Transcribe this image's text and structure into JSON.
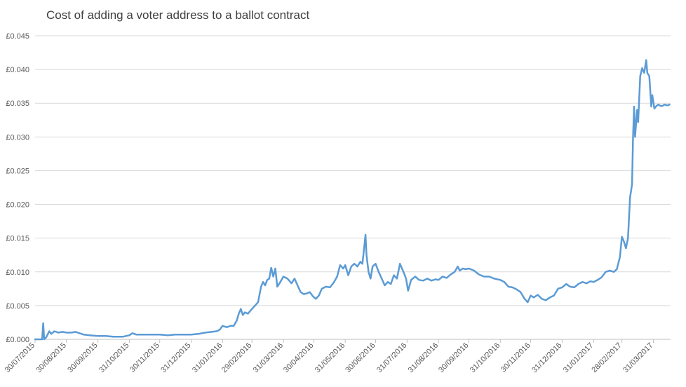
{
  "chart_data": {
    "type": "line",
    "title": "Cost of adding a voter address to a ballot contract",
    "xlabel": "",
    "ylabel": "",
    "ylim": [
      0,
      0.045
    ],
    "xlim": [
      "30/07/2015",
      "17/04/2017"
    ],
    "y_tick_labels": [
      "£0.000",
      "£0.005",
      "£0.010",
      "£0.015",
      "£0.020",
      "£0.025",
      "£0.030",
      "£0.035",
      "£0.040",
      "£0.045"
    ],
    "y_tick_values": [
      0,
      0.005,
      0.01,
      0.015,
      0.02,
      0.025,
      0.03,
      0.035,
      0.04,
      0.045
    ],
    "x_tick_labels": [
      "30/07/2015",
      "30/08/2015",
      "30/09/2015",
      "31/10/2015",
      "30/11/2015",
      "31/12/2015",
      "31/01/2016",
      "29/02/2016",
      "31/03/2016",
      "30/04/2016",
      "31/05/2016",
      "30/06/2016",
      "31/07/2016",
      "31/08/2016",
      "30/09/2016",
      "31/10/2016",
      "30/11/2016",
      "31/12/2016",
      "31/01/2017",
      "28/02/2017",
      "31/03/2017"
    ],
    "grid": true,
    "legend": "none",
    "series": [
      {
        "color": "#5b9bd5",
        "points": [
          [
            "30/07/2015",
            0.0
          ],
          [
            "06/08/2015",
            0.0
          ],
          [
            "07/08/2015",
            0.0024
          ],
          [
            "08/08/2015",
            0.0
          ],
          [
            "10/08/2015",
            0.0003
          ],
          [
            "13/08/2015",
            0.0012
          ],
          [
            "15/08/2015",
            0.0008
          ],
          [
            "18/08/2015",
            0.0012
          ],
          [
            "22/08/2015",
            0.001
          ],
          [
            "26/08/2015",
            0.0011
          ],
          [
            "30/08/2015",
            0.001
          ],
          [
            "04/09/2015",
            0.001
          ],
          [
            "08/09/2015",
            0.0011
          ],
          [
            "12/09/2015",
            0.0009
          ],
          [
            "16/09/2015",
            0.0007
          ],
          [
            "22/09/2015",
            0.0006
          ],
          [
            "30/09/2015",
            0.0005
          ],
          [
            "08/10/2015",
            0.0005
          ],
          [
            "15/10/2015",
            0.0004
          ],
          [
            "20/10/2015",
            0.0004
          ],
          [
            "25/10/2015",
            0.0004
          ],
          [
            "28/10/2015",
            0.0005
          ],
          [
            "31/10/2015",
            0.0006
          ],
          [
            "03/11/2015",
            0.0009
          ],
          [
            "07/11/2015",
            0.0007
          ],
          [
            "12/11/2015",
            0.0007
          ],
          [
            "18/11/2015",
            0.0007
          ],
          [
            "25/11/2015",
            0.0007
          ],
          [
            "30/11/2015",
            0.0007
          ],
          [
            "08/12/2015",
            0.0006
          ],
          [
            "15/12/2015",
            0.0007
          ],
          [
            "22/12/2015",
            0.0007
          ],
          [
            "31/12/2015",
            0.0007
          ],
          [
            "07/01/2016",
            0.0008
          ],
          [
            "14/01/2016",
            0.001
          ],
          [
            "20/01/2016",
            0.0011
          ],
          [
            "25/01/2016",
            0.0012
          ],
          [
            "28/01/2016",
            0.0014
          ],
          [
            "31/01/2016",
            0.002
          ],
          [
            "04/02/2016",
            0.0018
          ],
          [
            "08/02/2016",
            0.002
          ],
          [
            "11/02/2016",
            0.002
          ],
          [
            "14/02/2016",
            0.0028
          ],
          [
            "16/02/2016",
            0.0038
          ],
          [
            "18/02/2016",
            0.0045
          ],
          [
            "20/02/2016",
            0.0036
          ],
          [
            "22/02/2016",
            0.004
          ],
          [
            "25/02/2016",
            0.0038
          ],
          [
            "29/02/2016",
            0.0045
          ],
          [
            "03/03/2016",
            0.005
          ],
          [
            "06/03/2016",
            0.0055
          ],
          [
            "09/03/2016",
            0.0078
          ],
          [
            "11/03/2016",
            0.0085
          ],
          [
            "13/03/2016",
            0.008
          ],
          [
            "15/03/2016",
            0.0088
          ],
          [
            "17/03/2016",
            0.009
          ],
          [
            "19/03/2016",
            0.0106
          ],
          [
            "21/03/2016",
            0.0093
          ],
          [
            "23/03/2016",
            0.0105
          ],
          [
            "25/03/2016",
            0.0078
          ],
          [
            "28/03/2016",
            0.0085
          ],
          [
            "31/03/2016",
            0.0093
          ],
          [
            "04/04/2016",
            0.009
          ],
          [
            "08/04/2016",
            0.0083
          ],
          [
            "11/04/2016",
            0.009
          ],
          [
            "14/04/2016",
            0.008
          ],
          [
            "17/04/2016",
            0.007
          ],
          [
            "20/04/2016",
            0.0067
          ],
          [
            "23/04/2016",
            0.0068
          ],
          [
            "26/04/2016",
            0.007
          ],
          [
            "29/04/2016",
            0.0064
          ],
          [
            "02/05/2016",
            0.006
          ],
          [
            "05/05/2016",
            0.0065
          ],
          [
            "08/05/2016",
            0.0075
          ],
          [
            "12/05/2016",
            0.0078
          ],
          [
            "16/05/2016",
            0.0077
          ],
          [
            "20/05/2016",
            0.0085
          ],
          [
            "23/05/2016",
            0.0093
          ],
          [
            "26/05/2016",
            0.011
          ],
          [
            "29/05/2016",
            0.0105
          ],
          [
            "31/05/2016",
            0.011
          ],
          [
            "03/06/2016",
            0.0095
          ],
          [
            "06/06/2016",
            0.0108
          ],
          [
            "09/06/2016",
            0.0112
          ],
          [
            "12/06/2016",
            0.0108
          ],
          [
            "15/06/2016",
            0.0115
          ],
          [
            "17/06/2016",
            0.0112
          ],
          [
            "19/06/2016",
            0.014
          ],
          [
            "20/06/2016",
            0.0155
          ],
          [
            "21/06/2016",
            0.0125
          ],
          [
            "23/06/2016",
            0.01
          ],
          [
            "25/06/2016",
            0.009
          ],
          [
            "27/06/2016",
            0.0108
          ],
          [
            "30/06/2016",
            0.0112
          ],
          [
            "03/07/2016",
            0.01
          ],
          [
            "06/07/2016",
            0.009
          ],
          [
            "09/07/2016",
            0.008
          ],
          [
            "12/07/2016",
            0.0085
          ],
          [
            "15/07/2016",
            0.0082
          ],
          [
            "18/07/2016",
            0.0095
          ],
          [
            "21/07/2016",
            0.009
          ],
          [
            "24/07/2016",
            0.0112
          ],
          [
            "26/07/2016",
            0.0105
          ],
          [
            "28/07/2016",
            0.0098
          ],
          [
            "30/07/2016",
            0.009
          ],
          [
            "01/08/2016",
            0.0072
          ],
          [
            "04/08/2016",
            0.0088
          ],
          [
            "08/08/2016",
            0.0093
          ],
          [
            "12/08/2016",
            0.0088
          ],
          [
            "16/08/2016",
            0.0087
          ],
          [
            "20/08/2016",
            0.009
          ],
          [
            "24/08/2016",
            0.0087
          ],
          [
            "28/08/2016",
            0.0089
          ],
          [
            "31/08/2016",
            0.0088
          ],
          [
            "04/09/2016",
            0.0093
          ],
          [
            "08/09/2016",
            0.0091
          ],
          [
            "12/09/2016",
            0.0096
          ],
          [
            "16/09/2016",
            0.01
          ],
          [
            "19/09/2016",
            0.0108
          ],
          [
            "21/09/2016",
            0.0102
          ],
          [
            "24/09/2016",
            0.0105
          ],
          [
            "27/09/2016",
            0.0104
          ],
          [
            "30/09/2016",
            0.0105
          ],
          [
            "05/10/2016",
            0.0102
          ],
          [
            "10/10/2016",
            0.0096
          ],
          [
            "15/10/2016",
            0.0093
          ],
          [
            "20/10/2016",
            0.0093
          ],
          [
            "25/10/2016",
            0.009
          ],
          [
            "31/10/2016",
            0.0088
          ],
          [
            "04/11/2016",
            0.0085
          ],
          [
            "08/11/2016",
            0.0078
          ],
          [
            "12/11/2016",
            0.0077
          ],
          [
            "16/11/2016",
            0.0074
          ],
          [
            "20/11/2016",
            0.007
          ],
          [
            "24/11/2016",
            0.006
          ],
          [
            "27/11/2016",
            0.0055
          ],
          [
            "30/11/2016",
            0.0065
          ],
          [
            "03/12/2016",
            0.0062
          ],
          [
            "07/12/2016",
            0.0066
          ],
          [
            "11/12/2016",
            0.006
          ],
          [
            "15/12/2016",
            0.0058
          ],
          [
            "19/12/2016",
            0.0062
          ],
          [
            "23/12/2016",
            0.0065
          ],
          [
            "27/12/2016",
            0.0075
          ],
          [
            "31/12/2016",
            0.0077
          ],
          [
            "04/01/2017",
            0.0082
          ],
          [
            "08/01/2017",
            0.0078
          ],
          [
            "12/01/2017",
            0.0077
          ],
          [
            "16/01/2017",
            0.0082
          ],
          [
            "20/01/2017",
            0.0085
          ],
          [
            "24/01/2017",
            0.0083
          ],
          [
            "28/01/2017",
            0.0086
          ],
          [
            "31/01/2017",
            0.0085
          ],
          [
            "04/02/2017",
            0.0088
          ],
          [
            "08/02/2017",
            0.0092
          ],
          [
            "12/02/2017",
            0.01
          ],
          [
            "16/02/2017",
            0.0102
          ],
          [
            "20/02/2017",
            0.01
          ],
          [
            "23/02/2017",
            0.0104
          ],
          [
            "26/02/2017",
            0.0122
          ],
          [
            "28/02/2017",
            0.0152
          ],
          [
            "02/03/2017",
            0.0145
          ],
          [
            "04/03/2017",
            0.0135
          ],
          [
            "06/03/2017",
            0.015
          ],
          [
            "08/03/2017",
            0.021
          ],
          [
            "10/03/2017",
            0.023
          ],
          [
            "11/03/2017",
            0.03
          ],
          [
            "12/03/2017",
            0.0345
          ],
          [
            "13/03/2017",
            0.03
          ],
          [
            "15/03/2017",
            0.034
          ],
          [
            "16/03/2017",
            0.0322
          ],
          [
            "18/03/2017",
            0.039
          ],
          [
            "20/03/2017",
            0.0402
          ],
          [
            "22/03/2017",
            0.0395
          ],
          [
            "24/03/2017",
            0.0414
          ],
          [
            "25/03/2017",
            0.0395
          ],
          [
            "27/03/2017",
            0.039
          ],
          [
            "29/03/2017",
            0.0345
          ],
          [
            "30/03/2017",
            0.0362
          ],
          [
            "01/04/2017",
            0.0342
          ],
          [
            "03/04/2017",
            0.0346
          ],
          [
            "05/04/2017",
            0.0348
          ],
          [
            "07/04/2017",
            0.0346
          ],
          [
            "09/04/2017",
            0.0346
          ],
          [
            "11/04/2017",
            0.0348
          ],
          [
            "13/04/2017",
            0.0347
          ],
          [
            "15/04/2017",
            0.0347
          ],
          [
            "16/04/2017",
            0.0348
          ]
        ]
      }
    ]
  }
}
